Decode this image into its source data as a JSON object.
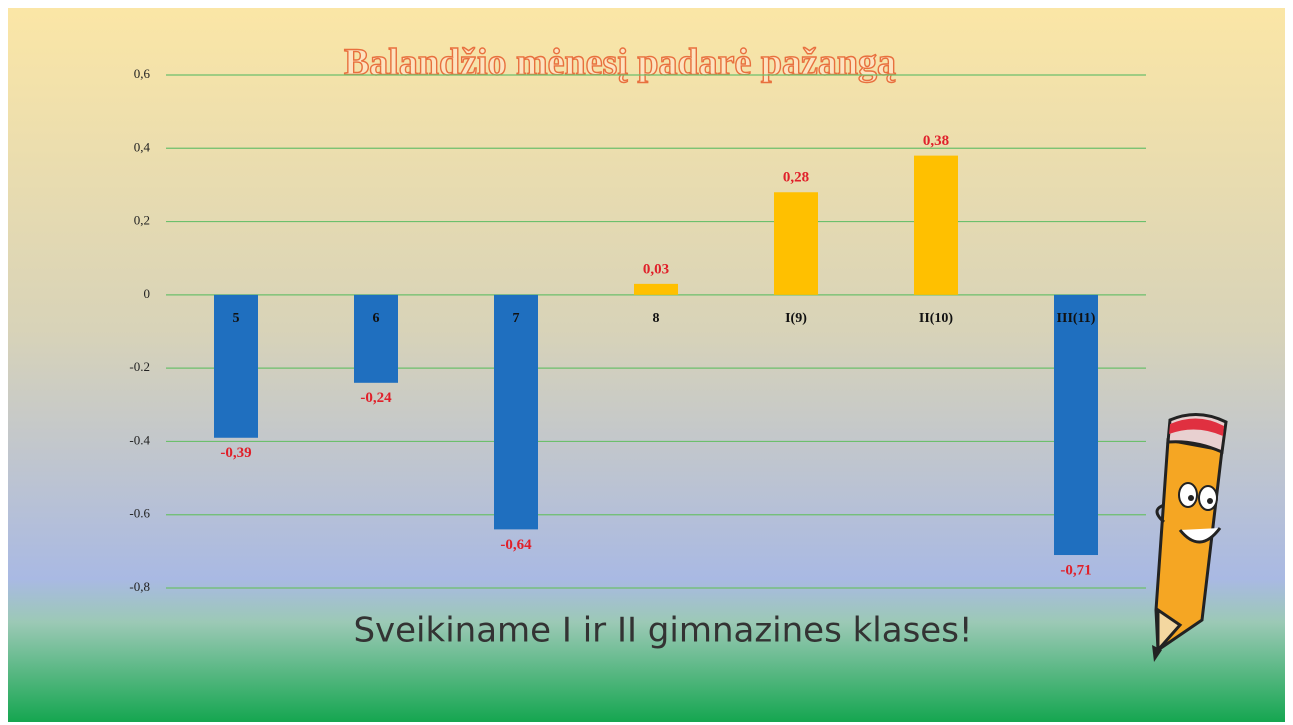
{
  "chart_data": {
    "type": "bar",
    "title": "Balandžio mėnesį padarė pažangą",
    "annotation": "Sveikiname I ir II gimnazines klases!",
    "categories": [
      "5",
      "6",
      "7",
      "8",
      "I(9)",
      "II(10)",
      "III(11)"
    ],
    "values": [
      -0.39,
      -0.24,
      -0.64,
      0.03,
      0.28,
      0.38,
      -0.71
    ],
    "value_labels": [
      "-0,39",
      "-0,24",
      "-0,64",
      "0,03",
      "0,28",
      "0,38",
      "-0,71"
    ],
    "colors": [
      "#1f6fbf",
      "#1f6fbf",
      "#1f6fbf",
      "#ffc000",
      "#ffc000",
      "#ffc000",
      "#1f6fbf"
    ],
    "ylim": [
      -0.8,
      0.6
    ],
    "yticks": [
      {
        "value": 0.6,
        "label": "0,6"
      },
      {
        "value": 0.4,
        "label": "0,4"
      },
      {
        "value": 0.2,
        "label": "0,2"
      },
      0,
      {
        "value": -0.2,
        "label": "-0.2"
      },
      {
        "value": -0.4,
        "label": "-0.4"
      },
      {
        "value": -0.6,
        "label": "-0.6"
      },
      {
        "value": -0.8,
        "label": "-0,8"
      }
    ],
    "grid": true,
    "grid_color": "#6cbf6c"
  }
}
